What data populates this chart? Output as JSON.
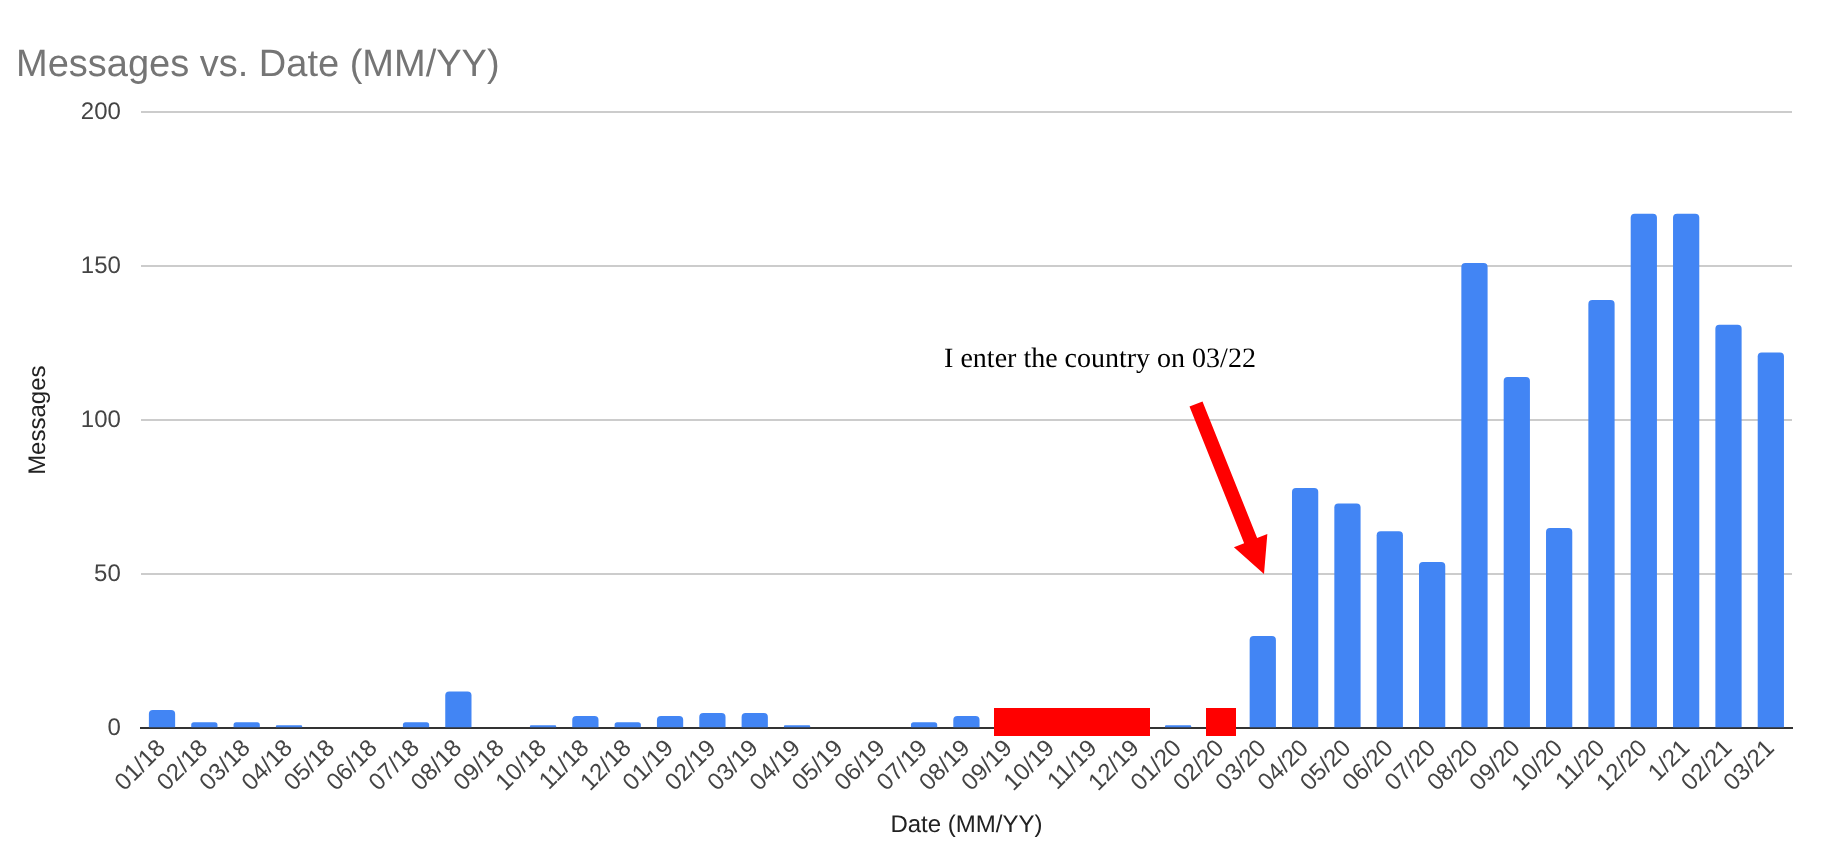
{
  "chart_data": {
    "type": "bar",
    "title": "Messages vs. Date (MM/YY)",
    "xlabel": "Date (MM/YY)",
    "ylabel": "Messages",
    "categories": [
      "01/18",
      "02/18",
      "03/18",
      "04/18",
      "05/18",
      "06/18",
      "07/18",
      "08/18",
      "09/18",
      "10/18",
      "11/18",
      "12/18",
      "01/19",
      "02/19",
      "03/19",
      "04/19",
      "05/19",
      "06/19",
      "07/19",
      "08/19",
      "09/19",
      "10/19",
      "11/19",
      "12/19",
      "01/20",
      "02/20",
      "03/20",
      "04/20",
      "05/20",
      "06/20",
      "07/20",
      "08/20",
      "09/20",
      "10/20",
      "11/20",
      "12/20",
      "1/21",
      "02/21",
      "03/21"
    ],
    "values": [
      6,
      2,
      2,
      1,
      0,
      0,
      2,
      12,
      0,
      1,
      4,
      2,
      4,
      5,
      5,
      1,
      0,
      0,
      2,
      4,
      null,
      null,
      null,
      null,
      1,
      null,
      30,
      78,
      73,
      64,
      54,
      151,
      114,
      65,
      139,
      167,
      167,
      131,
      122
    ],
    "color": "#4285f4",
    "ylim": [
      0,
      200
    ],
    "yticks": [
      0,
      50,
      100,
      150,
      200
    ],
    "grid": "y",
    "legend": false,
    "annotations": [
      "I enter the country on 03/22"
    ]
  }
}
